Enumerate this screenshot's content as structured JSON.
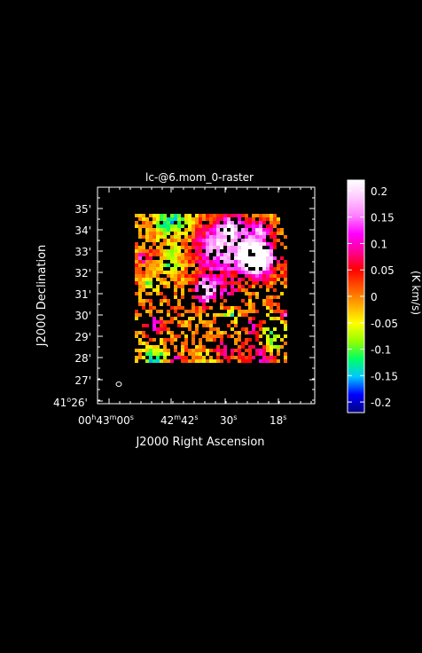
{
  "chart_data": {
    "type": "heatmap",
    "title": "lc-@6.mom_0-raster",
    "xlabel": "J2000 Right Ascension",
    "ylabel": "J2000 Declination",
    "x_tick_labels": [
      {
        "h": "00",
        "hs": "h",
        "m": "43",
        "ms": "m",
        "s": "00",
        "ss": "s"
      },
      {
        "m": "42",
        "ms": "m",
        "s": "42",
        "ss": "s"
      },
      {
        "s": "30",
        "ss": "s"
      },
      {
        "s": "18",
        "ss": "s"
      }
    ],
    "y_tick_labels": [
      "35'",
      "34'",
      "33'",
      "32'",
      "31'",
      "30'",
      "29'",
      "28'",
      "27'"
    ],
    "y_first_label": {
      "deg": "41",
      "ds": "o",
      "min": "26'"
    },
    "colorbar": {
      "label": "(K km/s)",
      "range": [
        -0.22,
        0.22
      ],
      "ticks": [
        0.2,
        0.15,
        0.1,
        0.05,
        0,
        -0.05,
        -0.1,
        -0.15,
        -0.2
      ],
      "tick_labels": [
        "0.2",
        "0.15",
        "0.1",
        "0.05",
        "0",
        "-0.05",
        "-0.1",
        "-0.15",
        "-0.2"
      ],
      "colormap": [
        "#000080",
        "#0000ff",
        "#00c8ff",
        "#00ff64",
        "#96ff00",
        "#ffff00",
        "#ffaa00",
        "#ff5500",
        "#ff0000",
        "#ff0096",
        "#ff00ff",
        "#ff80ff",
        "#ffc8ff",
        "#ffffff"
      ]
    },
    "grid": false,
    "beam_marker": "ellipse at lower-left"
  }
}
